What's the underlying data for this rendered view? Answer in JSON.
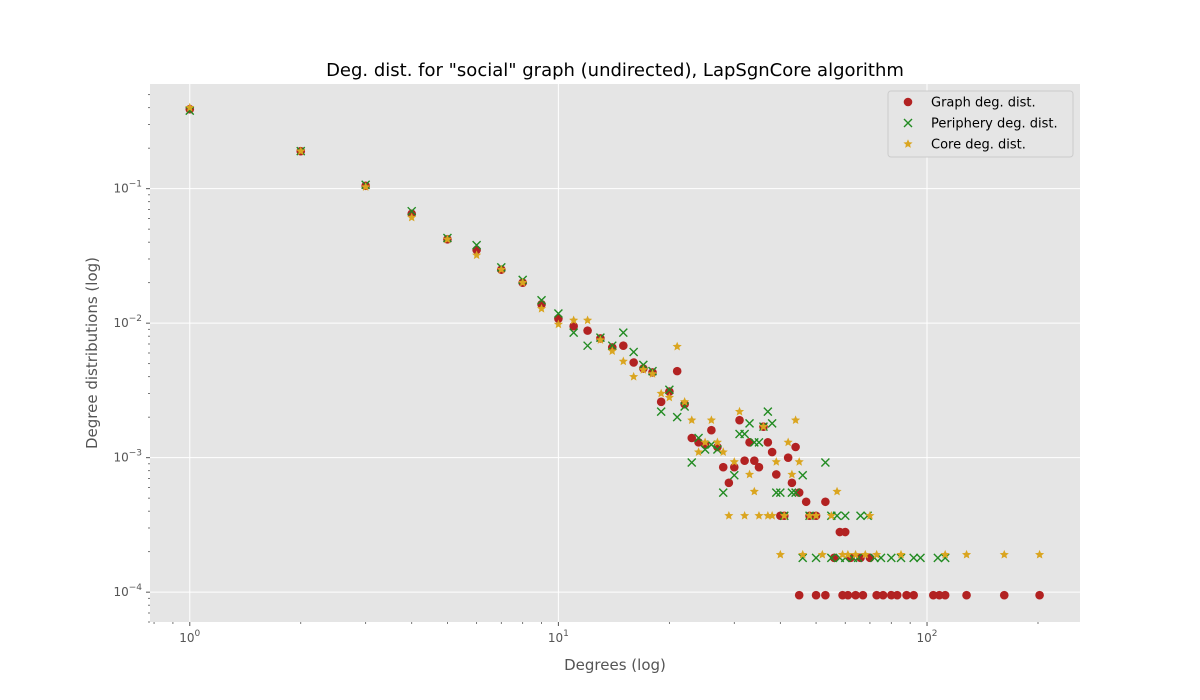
{
  "chart_data": {
    "type": "scatter",
    "title": "Deg. dist. for \"social\" graph (undirected), LapSgnCore algorithm",
    "xlabel": "Degrees (log)",
    "ylabel": "Degree distributions (log)",
    "xscale": "log",
    "yscale": "log",
    "xlim": [
      0.78,
      260
    ],
    "ylim": [
      6e-05,
      0.6
    ],
    "grid": true,
    "legend_position": "top-right",
    "x_ticks": [
      {
        "value": 1,
        "base": "10",
        "exp": "0"
      },
      {
        "value": 10,
        "base": "10",
        "exp": "1"
      },
      {
        "value": 100,
        "base": "10",
        "exp": "2"
      }
    ],
    "y_ticks": [
      {
        "value": 0.0001,
        "base": "10",
        "exp": "−4"
      },
      {
        "value": 0.001,
        "base": "10",
        "exp": "−3"
      },
      {
        "value": 0.01,
        "base": "10",
        "exp": "−2"
      },
      {
        "value": 0.1,
        "base": "10",
        "exp": "−1"
      }
    ],
    "series": [
      {
        "name": "Graph deg. dist.",
        "marker": "circle",
        "color": "#b22222",
        "points": [
          [
            1,
            0.39
          ],
          [
            2,
            0.19
          ],
          [
            3,
            0.105
          ],
          [
            4,
            0.065
          ],
          [
            5,
            0.042
          ],
          [
            6,
            0.035
          ],
          [
            7,
            0.025
          ],
          [
            8,
            0.02
          ],
          [
            9,
            0.0138
          ],
          [
            10,
            0.0108
          ],
          [
            11,
            0.0095
          ],
          [
            12,
            0.0088
          ],
          [
            13,
            0.0077
          ],
          [
            14,
            0.0066
          ],
          [
            15,
            0.0068
          ],
          [
            16,
            0.0051
          ],
          [
            17,
            0.0046
          ],
          [
            18,
            0.0043
          ],
          [
            19,
            0.0026
          ],
          [
            20,
            0.0031
          ],
          [
            21,
            0.0044
          ],
          [
            22,
            0.0025
          ],
          [
            23,
            0.0014
          ],
          [
            24,
            0.0013
          ],
          [
            25,
            0.00125
          ],
          [
            26,
            0.0016
          ],
          [
            27,
            0.0012
          ],
          [
            28,
            0.00085
          ],
          [
            29,
            0.00065
          ],
          [
            30,
            0.00085
          ],
          [
            31,
            0.0019
          ],
          [
            32,
            0.00095
          ],
          [
            33,
            0.0013
          ],
          [
            34,
            0.00095
          ],
          [
            35,
            0.00085
          ],
          [
            36,
            0.0017
          ],
          [
            37,
            0.0013
          ],
          [
            38,
            0.0011
          ],
          [
            39,
            0.00075
          ],
          [
            40,
            0.00037
          ],
          [
            41,
            0.00037
          ],
          [
            42,
            0.001
          ],
          [
            43,
            0.00065
          ],
          [
            44,
            0.0012
          ],
          [
            45,
            0.00055
          ],
          [
            47,
            0.00047
          ],
          [
            48,
            0.00037
          ],
          [
            50,
            0.00037
          ],
          [
            53,
            0.00047
          ],
          [
            56,
            0.00018
          ],
          [
            58,
            0.00028
          ],
          [
            60,
            0.00028
          ],
          [
            62,
            0.00018
          ],
          [
            66,
            0.00018
          ],
          [
            70,
            0.00018
          ],
          [
            45,
            9.5e-05
          ],
          [
            50,
            9.5e-05
          ],
          [
            53,
            9.5e-05
          ],
          [
            59,
            9.5e-05
          ],
          [
            61,
            9.5e-05
          ],
          [
            64,
            9.5e-05
          ],
          [
            67,
            9.5e-05
          ],
          [
            73,
            9.5e-05
          ],
          [
            76,
            9.5e-05
          ],
          [
            80,
            9.5e-05
          ],
          [
            83,
            9.5e-05
          ],
          [
            88,
            9.5e-05
          ],
          [
            92,
            9.5e-05
          ],
          [
            104,
            9.5e-05
          ],
          [
            108,
            9.5e-05
          ],
          [
            112,
            9.5e-05
          ],
          [
            128,
            9.5e-05
          ],
          [
            162,
            9.5e-05
          ],
          [
            202,
            9.5e-05
          ]
        ]
      },
      {
        "name": "Periphery deg. dist.",
        "marker": "x",
        "color": "#228b22",
        "points": [
          [
            1,
            0.38
          ],
          [
            2,
            0.19
          ],
          [
            3,
            0.107
          ],
          [
            4,
            0.068
          ],
          [
            5,
            0.043
          ],
          [
            6,
            0.038
          ],
          [
            7,
            0.026
          ],
          [
            8,
            0.021
          ],
          [
            9,
            0.0148
          ],
          [
            10,
            0.0118
          ],
          [
            11,
            0.0085
          ],
          [
            12,
            0.0068
          ],
          [
            13,
            0.0078
          ],
          [
            14,
            0.0068
          ],
          [
            15,
            0.0085
          ],
          [
            16,
            0.0061
          ],
          [
            17,
            0.0049
          ],
          [
            18,
            0.0044
          ],
          [
            19,
            0.0022
          ],
          [
            20,
            0.0032
          ],
          [
            21,
            0.002
          ],
          [
            22,
            0.0024
          ],
          [
            23,
            0.00092
          ],
          [
            24,
            0.0014
          ],
          [
            25,
            0.00115
          ],
          [
            26,
            0.00125
          ],
          [
            27,
            0.00115
          ],
          [
            28,
            0.00055
          ],
          [
            30,
            0.00074
          ],
          [
            31,
            0.0015
          ],
          [
            32,
            0.0015
          ],
          [
            33,
            0.0018
          ],
          [
            34,
            0.0013
          ],
          [
            35,
            0.0013
          ],
          [
            36,
            0.0017
          ],
          [
            37,
            0.0022
          ],
          [
            38,
            0.0018
          ],
          [
            39,
            0.00055
          ],
          [
            40,
            0.00055
          ],
          [
            41,
            0.00037
          ],
          [
            43,
            0.00055
          ],
          [
            44,
            0.00055
          ],
          [
            46,
            0.00074
          ],
          [
            48,
            0.00037
          ],
          [
            50,
            0.00018
          ],
          [
            53,
            0.00092
          ],
          [
            55,
            0.00037
          ],
          [
            57,
            0.00037
          ],
          [
            60,
            0.00037
          ],
          [
            63,
            0.00018
          ],
          [
            66,
            0.00037
          ],
          [
            69,
            0.00037
          ],
          [
            72,
            0.00018
          ],
          [
            46,
            0.00018
          ],
          [
            55,
            0.00018
          ],
          [
            58,
            0.00018
          ],
          [
            60,
            0.00018
          ],
          [
            65,
            0.00018
          ],
          [
            75,
            0.00018
          ],
          [
            80,
            0.00018
          ],
          [
            85,
            0.00018
          ],
          [
            92,
            0.00018
          ],
          [
            96,
            0.00018
          ],
          [
            107,
            0.00018
          ],
          [
            112,
            0.00018
          ]
        ]
      },
      {
        "name": "Core deg. dist.",
        "marker": "star",
        "color": "#daa520",
        "points": [
          [
            1,
            0.4
          ],
          [
            2,
            0.19
          ],
          [
            3,
            0.103
          ],
          [
            4,
            0.061
          ],
          [
            5,
            0.042
          ],
          [
            6,
            0.032
          ],
          [
            7,
            0.025
          ],
          [
            8,
            0.02
          ],
          [
            9,
            0.0128
          ],
          [
            10,
            0.0098
          ],
          [
            11,
            0.0105
          ],
          [
            12,
            0.0105
          ],
          [
            13,
            0.0075
          ],
          [
            14,
            0.0062
          ],
          [
            15,
            0.0052
          ],
          [
            16,
            0.004
          ],
          [
            17,
            0.0045
          ],
          [
            18,
            0.0042
          ],
          [
            19,
            0.003
          ],
          [
            20,
            0.0028
          ],
          [
            21,
            0.0067
          ],
          [
            22,
            0.0026
          ],
          [
            23,
            0.0019
          ],
          [
            24,
            0.0011
          ],
          [
            25,
            0.0013
          ],
          [
            26,
            0.0019
          ],
          [
            27,
            0.0013
          ],
          [
            28,
            0.0011
          ],
          [
            29,
            0.00037
          ],
          [
            30,
            0.00093
          ],
          [
            31,
            0.0022
          ],
          [
            32,
            0.00037
          ],
          [
            33,
            0.00075
          ],
          [
            34,
            0.00056
          ],
          [
            35,
            0.00037
          ],
          [
            36,
            0.0017
          ],
          [
            37,
            0.00037
          ],
          [
            38,
            0.00037
          ],
          [
            39,
            0.00093
          ],
          [
            40,
            0.00019
          ],
          [
            41,
            0.00037
          ],
          [
            42,
            0.0013
          ],
          [
            43,
            0.00075
          ],
          [
            44,
            0.0019
          ],
          [
            45,
            0.00093
          ],
          [
            46,
            0.00019
          ],
          [
            48,
            0.00037
          ],
          [
            50,
            0.00037
          ],
          [
            52,
            0.00019
          ],
          [
            55,
            0.00037
          ],
          [
            57,
            0.00056
          ],
          [
            59,
            0.00019
          ],
          [
            61,
            0.00019
          ],
          [
            64,
            0.00019
          ],
          [
            68,
            0.00019
          ],
          [
            70,
            0.00037
          ],
          [
            73,
            0.00019
          ],
          [
            85,
            0.00019
          ],
          [
            112,
            0.00019
          ],
          [
            128,
            0.00019
          ],
          [
            162,
            0.00019
          ],
          [
            202,
            0.00019
          ]
        ]
      }
    ]
  }
}
